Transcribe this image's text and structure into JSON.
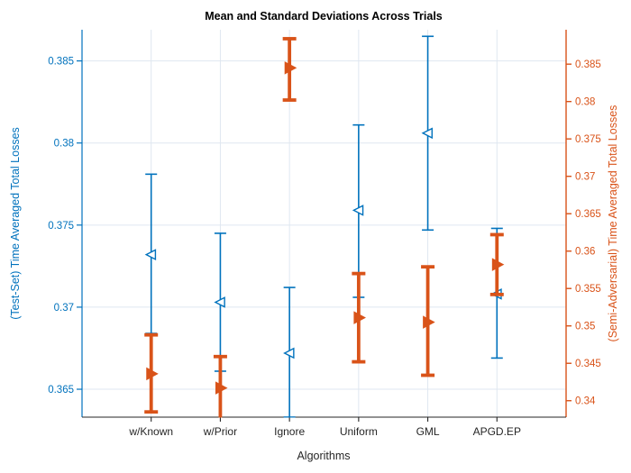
{
  "figure": {
    "background": "#ffffff"
  },
  "chart_data": {
    "type": "errorbar",
    "title": "Mean and Standard Deviations Across Trials",
    "xlabel": "Algorithms",
    "categories": [
      "w/Known",
      "w/Prior",
      "Ignore",
      "Uniform",
      "GML",
      "APGD.EP"
    ],
    "grid": true,
    "legend_position": "none",
    "left_axis": {
      "label": "(Test-Set) Time Averaged Total Losses",
      "color": "#0072BD",
      "ticks": [
        0.365,
        0.37,
        0.375,
        0.38,
        0.385
      ],
      "tick_labels": [
        "0.365",
        "0.37",
        "0.375",
        "0.38",
        "0.385"
      ],
      "ylim": [
        0.3633,
        0.3869
      ]
    },
    "right_axis": {
      "label": "(Semi-Adversarial) Time Averaged Total Losses",
      "color": "#D95319",
      "ticks": [
        0.34,
        0.345,
        0.35,
        0.355,
        0.36,
        0.365,
        0.37,
        0.375,
        0.38,
        0.385
      ],
      "tick_labels": [
        "0.34",
        "0.345",
        "0.35",
        "0.355",
        "0.36",
        "0.365",
        "0.37",
        "0.375",
        "0.38",
        "0.385"
      ],
      "ylim": [
        0.3378,
        0.3896
      ]
    },
    "x_axis": {
      "color": "#262626",
      "grid_color": "#dfe7f0"
    },
    "series": [
      {
        "name": "(Test-Set) Time Averaged Total Losses",
        "axis": "left",
        "color": "#0072BD",
        "marker": "left-triangle-open",
        "mean": [
          0.3732,
          0.3703,
          0.3672,
          0.3759,
          0.3806,
          0.3708
        ],
        "upper": [
          0.3781,
          0.3745,
          0.3712,
          0.3811,
          0.3865,
          0.3748
        ],
        "lower": [
          0.3684,
          0.3661,
          0.3633,
          0.3706,
          0.3747,
          0.3669
        ]
      },
      {
        "name": "(Semi-Adversarial) Time Averaged Total Losses",
        "axis": "right",
        "color": "#D95319",
        "marker": "right-triangle-filled",
        "mean": [
          0.3436,
          0.3417,
          0.3845,
          0.3511,
          0.3505,
          0.3582
        ],
        "upper": [
          0.3488,
          0.3459,
          0.3884,
          0.357,
          0.3579,
          0.3622
        ],
        "lower": [
          0.3385,
          0.3375,
          0.3802,
          0.3452,
          0.3434,
          0.3542
        ]
      }
    ]
  }
}
